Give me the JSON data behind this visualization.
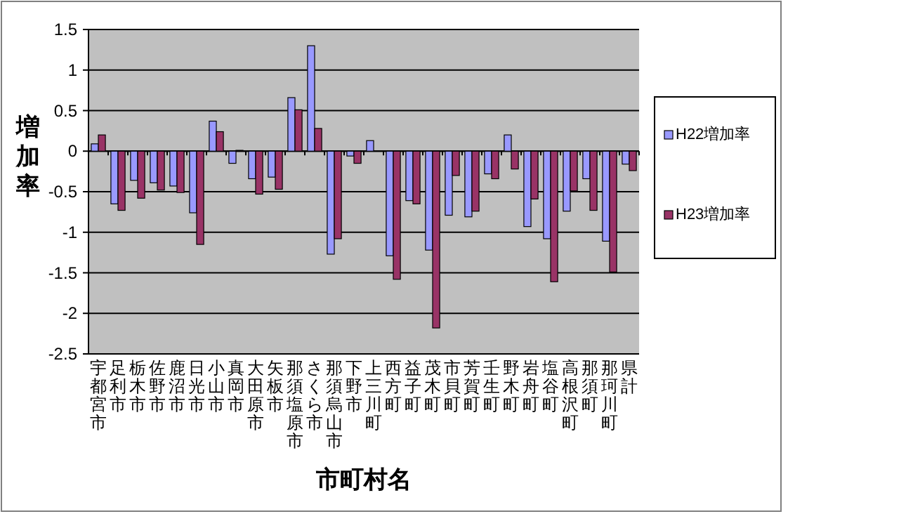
{
  "chart_data": {
    "type": "bar",
    "ylabel": "増加率",
    "xlabel": "市町村名",
    "categories": [
      "宇都宮市",
      "足利市",
      "栃木市",
      "佐野市",
      "鹿沼市",
      "日光市",
      "小山市",
      "真岡市",
      "大田原市",
      "矢板市",
      "那須塩原市",
      "さくら市",
      "那須烏山市",
      "下野市",
      "上三川町",
      "西方町",
      "益子町",
      "茂木町",
      "市貝町",
      "芳賀町",
      "壬生町",
      "野木町",
      "岩舟町",
      "塩谷町",
      "高根沢町",
      "那須町",
      "那珂川町",
      "県計"
    ],
    "series": [
      {
        "name": "H22増加率",
        "color": "#9999ff",
        "values": [
          0.09,
          -0.65,
          -0.36,
          -0.39,
          -0.43,
          -0.76,
          0.37,
          -0.15,
          -0.34,
          -0.32,
          0.66,
          1.3,
          -1.27,
          -0.06,
          0.13,
          -1.29,
          -0.61,
          -1.22,
          -0.79,
          -0.81,
          -0.28,
          0.2,
          -0.93,
          -1.08,
          -0.74,
          -0.34,
          -1.11,
          -0.16
        ]
      },
      {
        "name": "H23増加率",
        "color": "#993366",
        "values": [
          0.2,
          -0.73,
          -0.58,
          -0.48,
          -0.51,
          -1.15,
          0.24,
          0.01,
          -0.53,
          -0.47,
          0.51,
          0.28,
          -1.08,
          -0.15,
          0,
          -1.58,
          -0.65,
          -2.18,
          -0.3,
          -0.74,
          -0.34,
          -0.22,
          -0.59,
          -1.61,
          -0.49,
          -0.73,
          -1.49,
          -0.24
        ]
      }
    ],
    "ylim": [
      -2.5,
      1.5
    ],
    "yticks": [
      -2.5,
      -2,
      -1.5,
      -1,
      -0.5,
      0,
      0.5,
      1,
      1.5
    ],
    "grid": "y",
    "legend": "right"
  }
}
